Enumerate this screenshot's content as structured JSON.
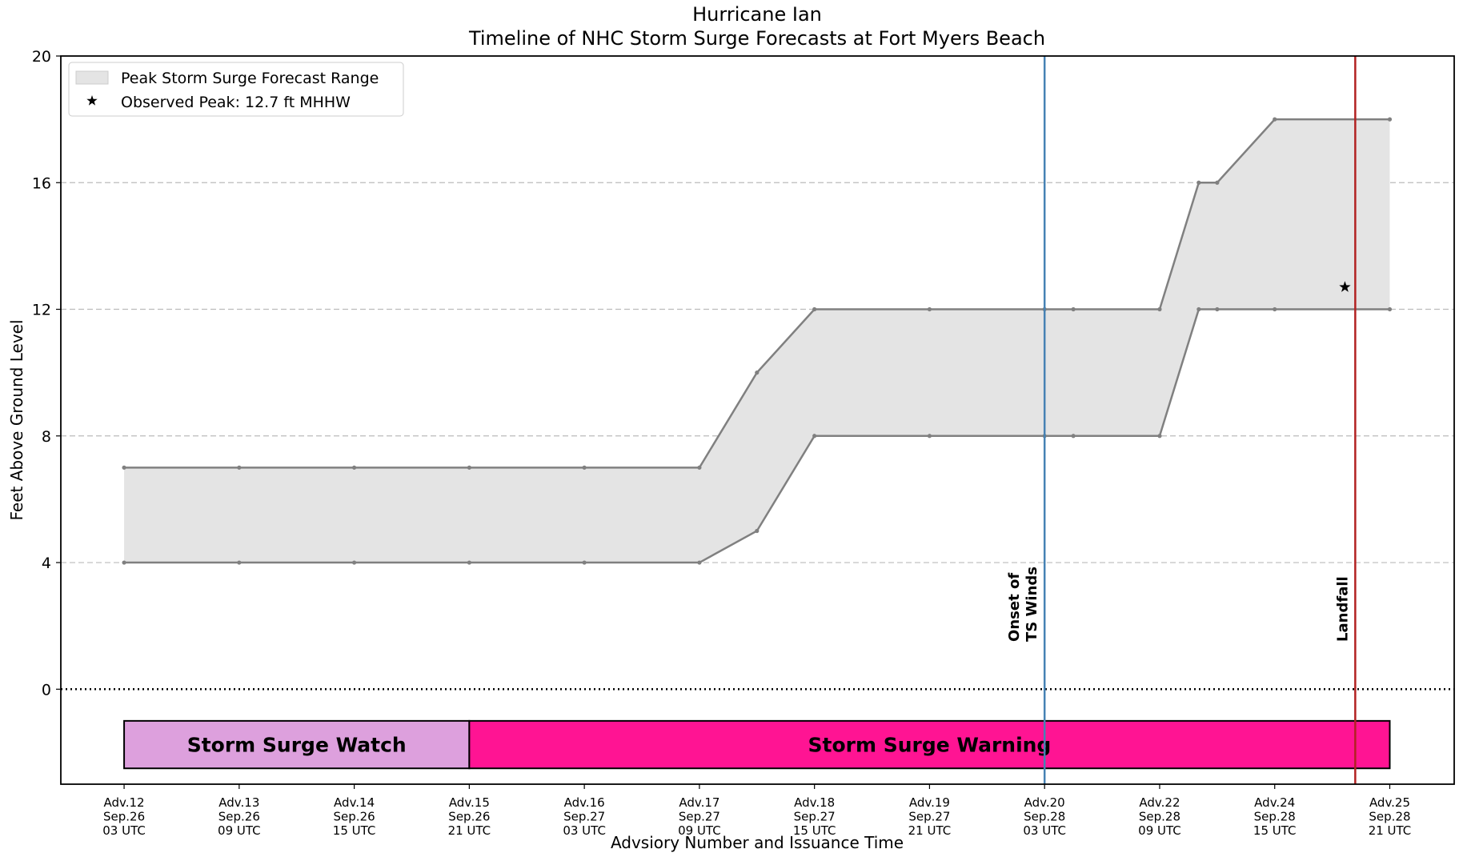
{
  "chart_data": {
    "type": "range",
    "title": "Hurricane Ian",
    "subtitle": "Timeline of NHC Storm Surge Forecasts at Fort Myers Beach",
    "x_label": "Advsiory Number and Issuance Time",
    "y_label": "Feet Above Ground Level",
    "x": [
      0,
      1,
      2,
      3,
      4,
      5,
      5.5,
      6,
      7,
      8,
      8.25,
      9,
      9.34,
      9.5,
      10,
      11
    ],
    "series": [
      {
        "name": "Peak Storm Surge Forecast Range",
        "color": "#e4e4e4",
        "line_color": "#808080",
        "high": [
          7,
          7,
          7,
          7,
          7,
          7,
          10,
          12,
          12,
          12,
          12,
          12,
          16,
          16,
          18,
          18
        ],
        "low": [
          4,
          4,
          4,
          4,
          4,
          4,
          5,
          8,
          8,
          8,
          8,
          8,
          12,
          12,
          12,
          12
        ]
      }
    ],
    "observed": {
      "name": "Observed Peak: 12.7 ft MHHW",
      "x": 10.61,
      "y": 12.7,
      "color": "#000000"
    },
    "vlines": [
      {
        "x": 8,
        "label": "Onset of\nTS Winds",
        "color": "#4682b4"
      },
      {
        "x": 10.7,
        "label": "Landfall",
        "color": "#b22222"
      }
    ],
    "periods": [
      {
        "label": "Storm Surge Watch",
        "start": 0,
        "end": 3,
        "y_range": [
          -2.5,
          -1
        ],
        "color": "#dda0dd"
      },
      {
        "label": "Storm Surge Warning",
        "start": 3,
        "end": 11,
        "y_range": [
          -2.5,
          -1
        ],
        "color": "#ff1493"
      }
    ],
    "xlim": [
      -0.55,
      11.56
    ],
    "ylim": [
      -3,
      20
    ],
    "yticks": [
      0,
      4,
      8,
      12,
      16,
      20
    ],
    "xticks": [
      {
        "value": 0,
        "label": "Adv.12\nSep.26\n03 UTC"
      },
      {
        "value": 1,
        "label": "Adv.13\nSep.26\n09 UTC"
      },
      {
        "value": 2,
        "label": "Adv.14\nSep.26\n15 UTC"
      },
      {
        "value": 3,
        "label": "Adv.15\nSep.26\n21 UTC"
      },
      {
        "value": 4,
        "label": "Adv.16\nSep.27\n03 UTC"
      },
      {
        "value": 5,
        "label": "Adv.17\nSep.27\n09 UTC"
      },
      {
        "value": 6,
        "label": "Adv.18\nSep.27\n15 UTC"
      },
      {
        "value": 7,
        "label": "Adv.19\nSep.27\n21 UTC"
      },
      {
        "value": 8,
        "label": "Adv.20\nSep.28\n03 UTC"
      },
      {
        "value": 9,
        "label": "Adv.22\nSep.28\n09 UTC"
      },
      {
        "value": 10,
        "label": "Adv.24\nSep.28\n15 UTC"
      },
      {
        "value": 11,
        "label": "Adv.25\nSep.28\n21 UTC"
      }
    ],
    "grid": true,
    "legend": "upper left"
  }
}
